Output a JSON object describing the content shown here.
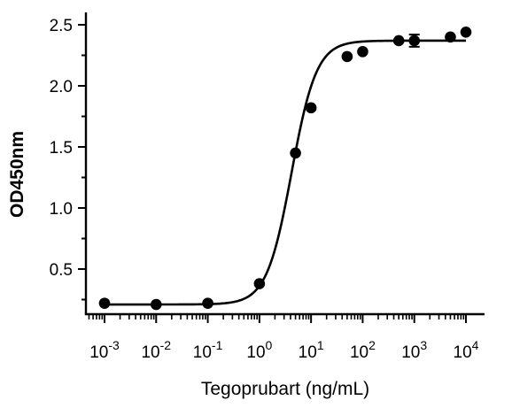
{
  "chart_data": {
    "type": "scatter",
    "title": "",
    "xlabel": "Tegoprubart (ng/mL)",
    "ylabel": "OD450nm",
    "x_scale": "log",
    "x_ticks": [
      {
        "value": 0.001,
        "base": "10",
        "exp": "-3"
      },
      {
        "value": 0.01,
        "base": "10",
        "exp": "-2"
      },
      {
        "value": 0.1,
        "base": "10",
        "exp": "-1"
      },
      {
        "value": 1,
        "base": "10",
        "exp": "0"
      },
      {
        "value": 10,
        "base": "10",
        "exp": "1"
      },
      {
        "value": 100,
        "base": "10",
        "exp": "2"
      },
      {
        "value": 1000,
        "base": "10",
        "exp": "3"
      },
      {
        "value": 10000,
        "base": "10",
        "exp": "4"
      }
    ],
    "y_ticks": [
      {
        "value": 0.5,
        "label": "0.5"
      },
      {
        "value": 1.0,
        "label": "1.0"
      },
      {
        "value": 1.5,
        "label": "1.5"
      },
      {
        "value": 2.0,
        "label": "2.0"
      },
      {
        "value": 2.5,
        "label": "2.5"
      }
    ],
    "ylim": [
      0.1,
      2.6
    ],
    "grid": false,
    "legend": "none",
    "series": [
      {
        "marker": "circle",
        "color": "#000000",
        "points": [
          {
            "x": 0.001,
            "y": 0.22
          },
          {
            "x": 0.01,
            "y": 0.21
          },
          {
            "x": 0.1,
            "y": 0.22
          },
          {
            "x": 1,
            "y": 0.38
          },
          {
            "x": 5,
            "y": 1.45
          },
          {
            "x": 10,
            "y": 1.82
          },
          {
            "x": 50,
            "y": 2.24
          },
          {
            "x": 100,
            "y": 2.28
          },
          {
            "x": 500,
            "y": 2.37
          },
          {
            "x": 1000,
            "y": 2.37,
            "err": 0.05
          },
          {
            "x": 5000,
            "y": 2.4
          },
          {
            "x": 10000,
            "y": 2.44
          }
        ]
      }
    ],
    "fit_curve": {
      "model": "4PL",
      "bottom": 0.21,
      "top": 2.37,
      "ec50": 4.2,
      "hill": 1.8
    }
  }
}
